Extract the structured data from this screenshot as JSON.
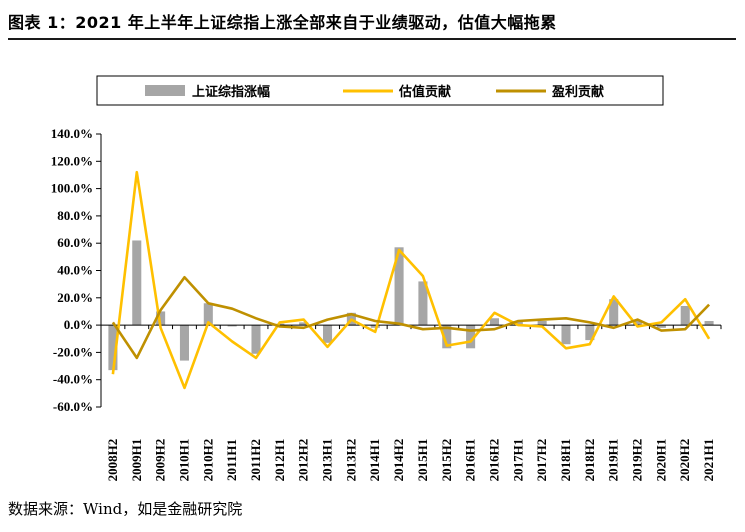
{
  "title": "图表 1：2021 年上半年上证综指上涨全部来自于业绩驱动，估值大幅拖累",
  "source": "数据来源：Wind，如是金融研究院",
  "colors": {
    "bar": "#a6a6a6",
    "valuation": "#ffc000",
    "profit": "#bf9000"
  },
  "chart_data": {
    "type": "bar",
    "categories": [
      "2008H2",
      "2009H1",
      "2009H2",
      "2010H1",
      "2010H2",
      "2011H1",
      "2011H2",
      "2012H1",
      "2012H2",
      "2013H1",
      "2013H2",
      "2014H1",
      "2014H2",
      "2015H1",
      "2015H2",
      "2016H1",
      "2016H2",
      "2017H1",
      "2017H2",
      "2018H1",
      "2018H2",
      "2019H1",
      "2019H2",
      "2020H1",
      "2020H2",
      "2021H1"
    ],
    "y_ticks": [
      "140.0%",
      "120.0%",
      "100.0%",
      "80.0%",
      "60.0%",
      "40.0%",
      "20.0%",
      "0.0%",
      "-20.0%",
      "-40.0%",
      "-60.0%"
    ],
    "ylim": [
      -60,
      140
    ],
    "legend_position": "top",
    "series": [
      {
        "name": "上证综指涨幅",
        "type": "bar",
        "values": [
          -33,
          62,
          10,
          -26,
          16,
          -1,
          -21,
          1,
          2,
          -13,
          9,
          -2,
          57,
          32,
          -17,
          -17,
          5,
          3,
          3,
          -14,
          -11,
          19,
          3,
          -2,
          14,
          3
        ]
      },
      {
        "name": "估值贡献",
        "type": "line",
        "values": [
          -36,
          112,
          -2,
          -46,
          2,
          -12,
          -24,
          2,
          4,
          -16,
          4,
          -5,
          55,
          36,
          -15,
          -12,
          9,
          0,
          -1,
          -17,
          -14,
          21,
          -1,
          2,
          19,
          -10
        ]
      },
      {
        "name": "盈利贡献",
        "type": "line",
        "values": [
          2,
          -24,
          11,
          35,
          16,
          12,
          5,
          -1,
          -2,
          4,
          8,
          3,
          1,
          -3,
          -2,
          -4,
          -3,
          3,
          4,
          5,
          2,
          -2,
          4,
          -4,
          -3,
          15
        ]
      }
    ]
  }
}
